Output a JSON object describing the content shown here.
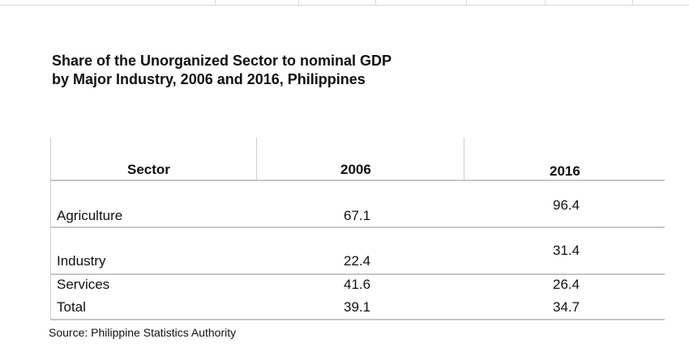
{
  "title": {
    "line1": "Share of the Unorganized Sector to nominal GDP",
    "line2": "by Major Industry, 2006 and 2016, Philippines"
  },
  "table": {
    "headers": [
      "Sector",
      "2006",
      "2016"
    ],
    "rows": [
      {
        "sector": "Agriculture",
        "y2006": "67.1",
        "y2016": "96.4"
      },
      {
        "sector": "Industry",
        "y2006": "22.4",
        "y2016": "31.4"
      },
      {
        "sector": "Services",
        "y2006": "41.6",
        "y2016": "26.4"
      },
      {
        "sector": "Total",
        "y2006": "39.1",
        "y2016": "34.7"
      }
    ]
  },
  "source": "Source: Philippine Statistics Authority"
}
